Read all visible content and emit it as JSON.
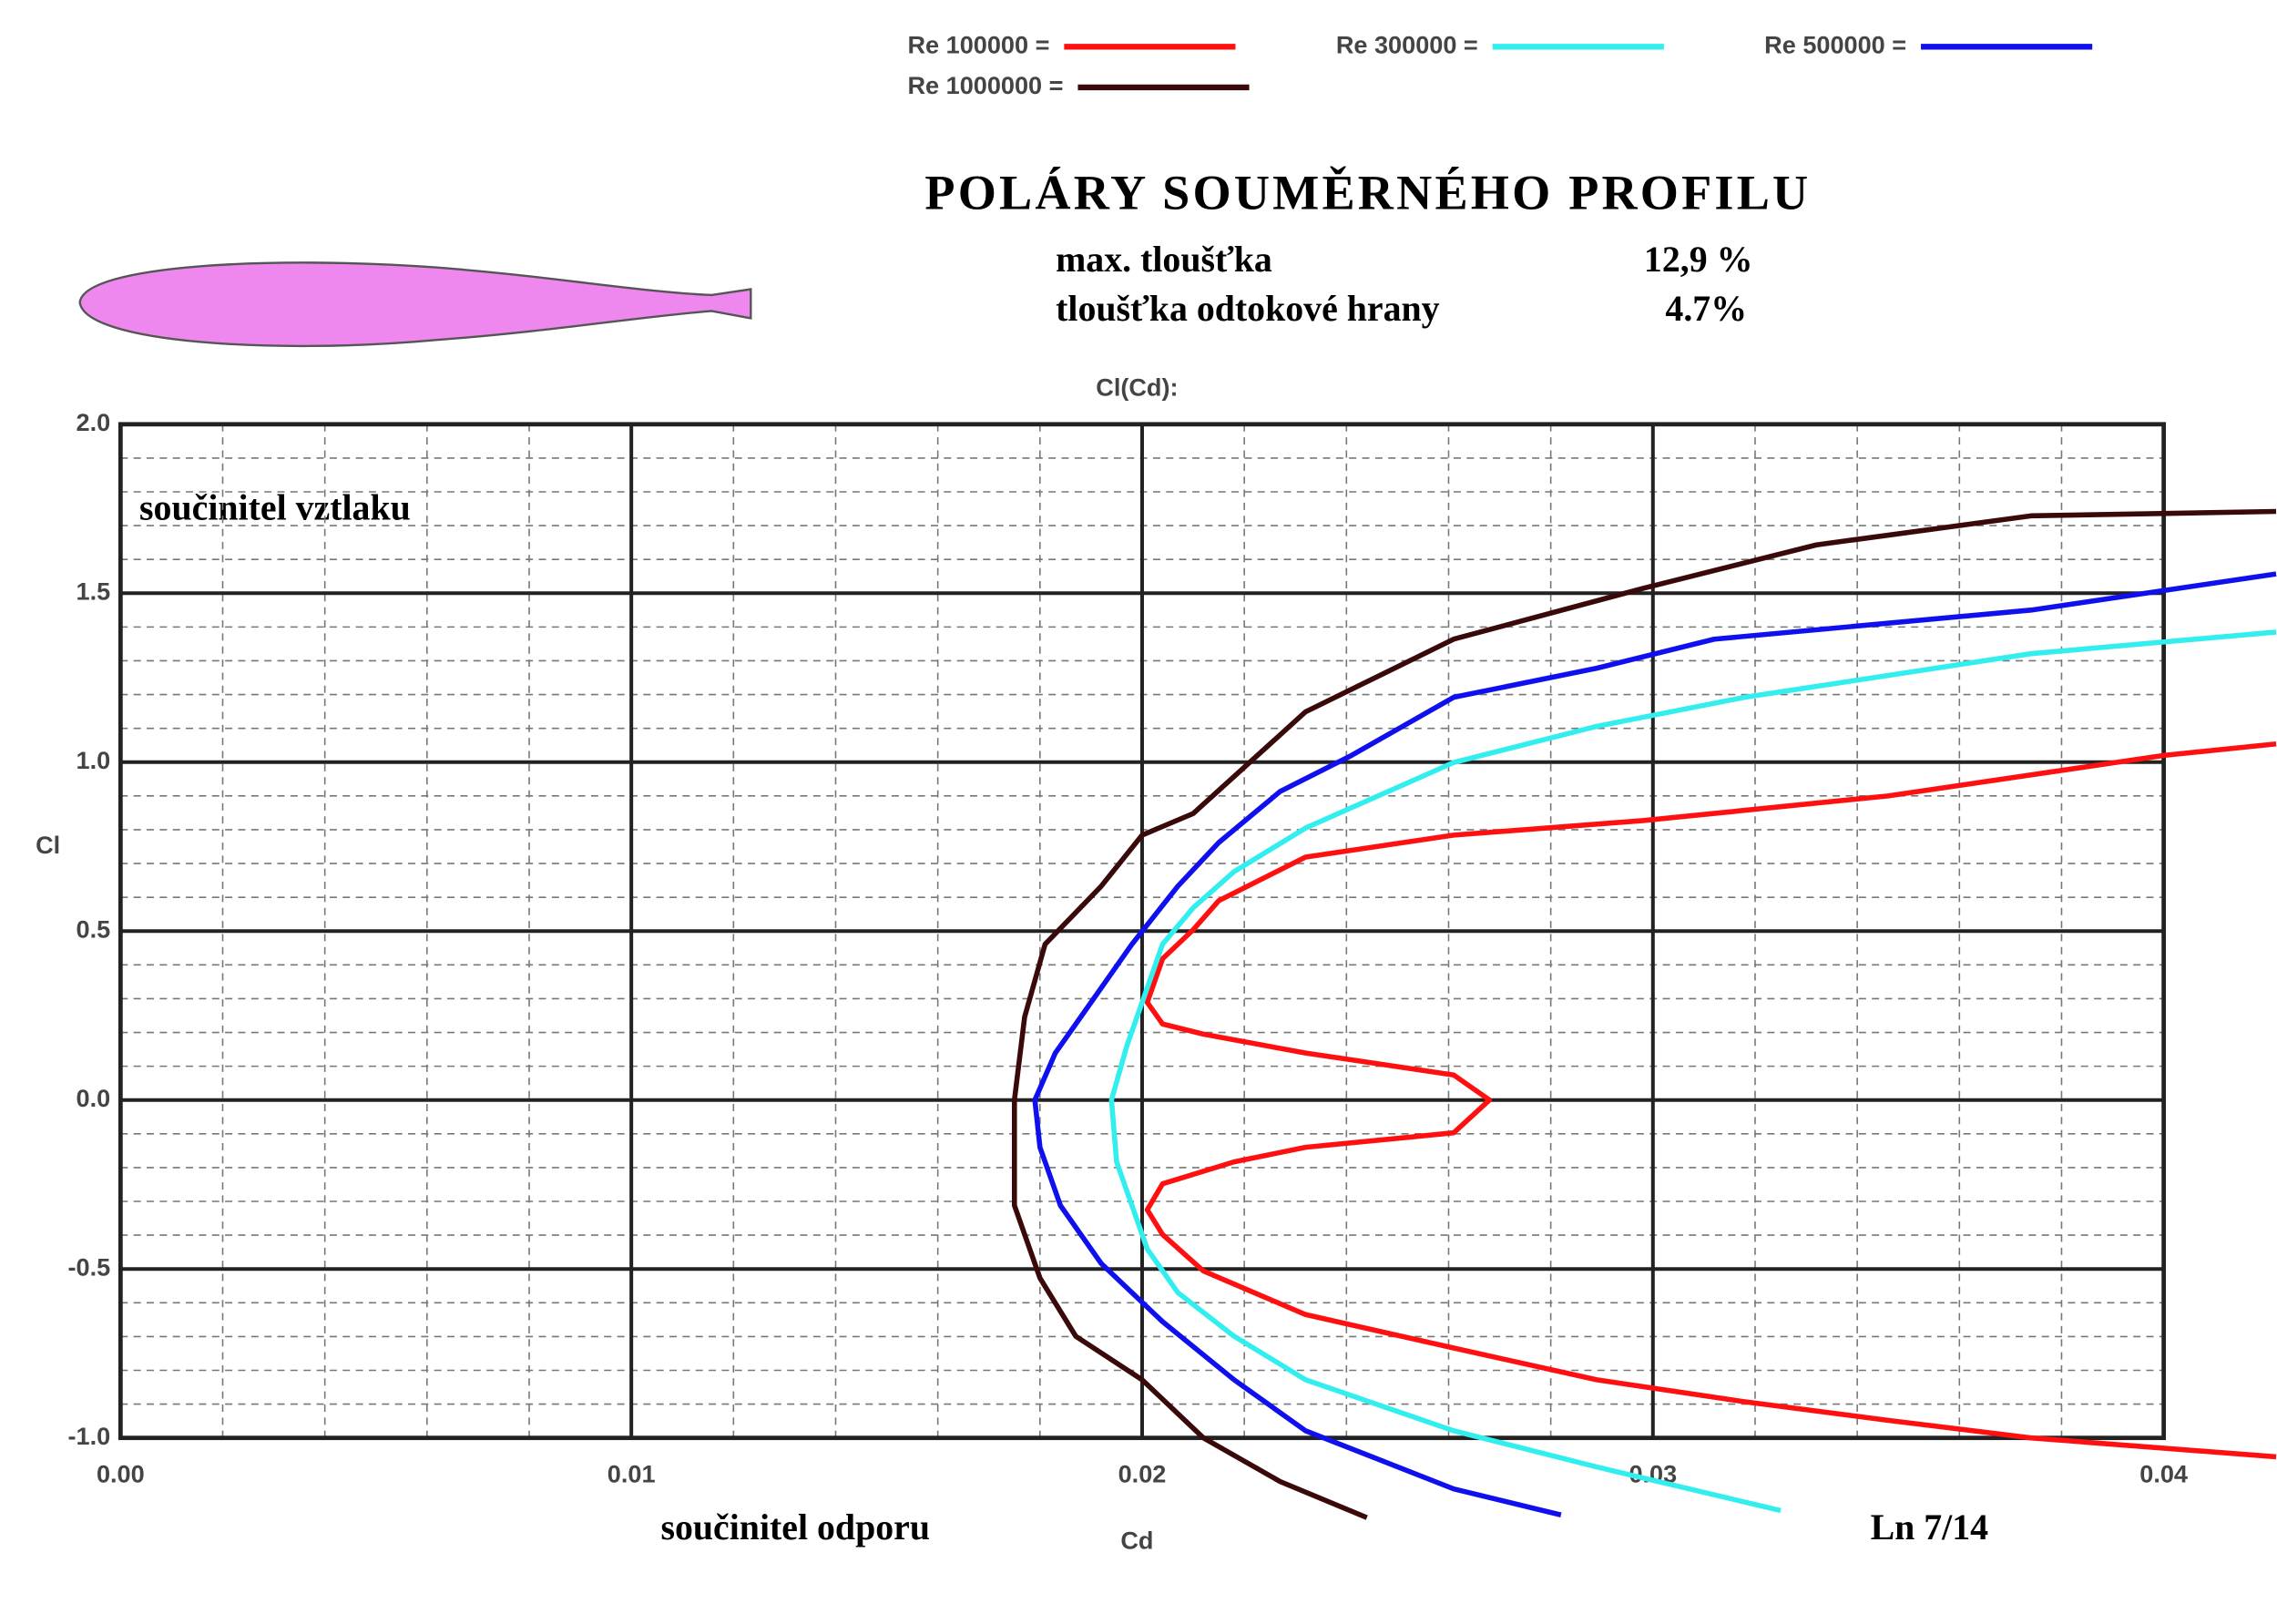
{
  "chart_data": {
    "type": "line",
    "title": "POLÁRY SOUMĚRNÉHO PROFILU",
    "info": [
      {
        "label": "max. tloušťka",
        "value": "12,9 %"
      },
      {
        "label": "tloušťka odtokové  hrany",
        "value": "4.7%"
      }
    ],
    "chart_title": "Cl(Cd):",
    "x_label": "Cd",
    "y_label": "Cl",
    "annotations": [
      "součinitel vztlaku",
      "součinitel  odporu",
      "Ln 7/14"
    ],
    "xlim": [
      0,
      0.04
    ],
    "ylim": [
      -1.0,
      2.0
    ],
    "xticks": [
      {
        "value": 0,
        "label": "0.00"
      },
      {
        "value": 0.01,
        "label": "0.01"
      },
      {
        "value": 0.02,
        "label": "0.02"
      },
      {
        "value": 0.03,
        "label": "0.03"
      },
      {
        "value": 0.04,
        "label": "0.04"
      }
    ],
    "yticks": [
      {
        "value": -1.0,
        "label": "-1.0"
      },
      {
        "value": -0.5,
        "label": "-0.5"
      },
      {
        "value": 0,
        "label": "0.0"
      },
      {
        "value": 0.5,
        "label": "0.5"
      },
      {
        "value": 1.0,
        "label": "1.0"
      },
      {
        "value": 1.5,
        "label": "1.5"
      },
      {
        "value": 2.0,
        "label": "2.0"
      }
    ],
    "grid": true,
    "minor_grid": {
      "x": 0.002,
      "y": 0.1
    },
    "series": [
      {
        "name": "Re 100000 =",
        "color": "#ff1010",
        "x": [
          0.0422,
          0.04,
          0.0346,
          0.0298,
          0.0261,
          0.0232,
          0.0215,
          0.021,
          0.0204,
          0.0201,
          0.0204,
          0.0212,
          0.0232,
          0.0261,
          0.0268,
          0.0261,
          0.0232,
          0.0218,
          0.0204,
          0.0201,
          0.0204,
          0.0212,
          0.0232,
          0.0261,
          0.0289,
          0.0318,
          0.0346,
          0.0374,
          0.0422
        ],
        "values": [
          1.054,
          1.02,
          0.9,
          0.827,
          0.784,
          0.719,
          0.59,
          0.504,
          0.418,
          0.289,
          0.225,
          0.195,
          0.139,
          0.074,
          0.0,
          -0.097,
          -0.14,
          -0.183,
          -0.248,
          -0.325,
          -0.398,
          -0.506,
          -0.635,
          -0.734,
          -0.828,
          -0.893,
          -0.948,
          -1.0,
          -1.056
        ]
      },
      {
        "name": "Re 300000 =",
        "color": "#33eeee",
        "x": [
          0.0422,
          0.0374,
          0.0318,
          0.0289,
          0.0261,
          0.0232,
          0.0218,
          0.021,
          0.0204,
          0.0201,
          0.0197,
          0.0194,
          0.0195,
          0.0198,
          0.0201,
          0.0207,
          0.0218,
          0.0232,
          0.0261,
          0.0289,
          0.0325
        ],
        "values": [
          1.385,
          1.321,
          1.192,
          1.106,
          0.999,
          0.805,
          0.676,
          0.569,
          0.461,
          0.332,
          0.16,
          0.0,
          -0.183,
          -0.312,
          -0.441,
          -0.57,
          -0.699,
          -0.828,
          -0.979,
          -1.086,
          -1.215
        ]
      },
      {
        "name": "Re 500000 =",
        "color": "#1010ee",
        "x": [
          0.0422,
          0.0374,
          0.0312,
          0.0289,
          0.0261,
          0.0241,
          0.0227,
          0.0215,
          0.0207,
          0.0198,
          0.019,
          0.0183,
          0.0179,
          0.018,
          0.0184,
          0.0192,
          0.0204,
          0.0218,
          0.0232,
          0.0261,
          0.0282
        ],
        "values": [
          1.557,
          1.45,
          1.364,
          1.278,
          1.192,
          1.02,
          0.913,
          0.762,
          0.633,
          0.461,
          0.289,
          0.139,
          0.0,
          -0.14,
          -0.312,
          -0.484,
          -0.656,
          -0.828,
          -0.979,
          -1.151,
          -1.228
        ]
      },
      {
        "name": "Re 1000000 =",
        "color": "#3a0a0a",
        "x": [
          0.0422,
          0.0374,
          0.0332,
          0.0298,
          0.0261,
          0.0232,
          0.021,
          0.02,
          0.0192,
          0.0181,
          0.0177,
          0.0175,
          0.0175,
          0.018,
          0.0187,
          0.02,
          0.0212,
          0.0227,
          0.0244
        ],
        "values": [
          1.742,
          1.729,
          1.643,
          1.514,
          1.364,
          1.149,
          0.848,
          0.784,
          0.633,
          0.461,
          0.246,
          0.0,
          -0.312,
          -0.527,
          -0.699,
          -0.828,
          -1.0,
          -1.129,
          -1.236
        ]
      }
    ]
  }
}
